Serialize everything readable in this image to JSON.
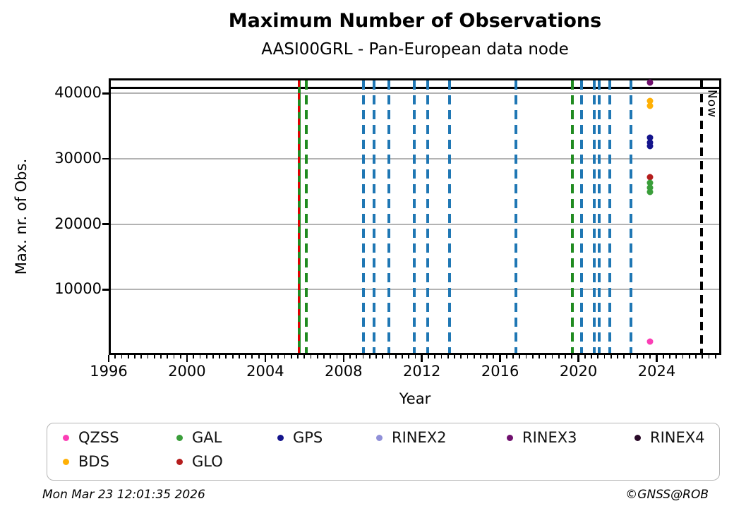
{
  "title": "Maximum Number of Observations",
  "subtitle": "AASI00GRL - Pan-European data node",
  "footer": {
    "timestamp": "Mon Mar 23 12:01:35 2026",
    "credit": "©GNSS@ROB"
  },
  "chart_data": {
    "type": "scatter",
    "title": "Maximum Number of Observations",
    "subtitle": "AASI00GRL - Pan-European data node",
    "xlabel": "Year",
    "ylabel": "Max. nr. of Obs.",
    "xlim": [
      1996,
      2027.3
    ],
    "ylim": [
      0,
      42300
    ],
    "xticks": [
      1996,
      2000,
      2004,
      2008,
      2012,
      2016,
      2020,
      2024
    ],
    "yticks": [
      10000,
      20000,
      30000,
      40000
    ],
    "minor_tick_step_years": 0.33333,
    "grid": "horizontal",
    "grid_color": "#b3b3b3",
    "hline": {
      "value": 40860,
      "color": "#000000"
    },
    "now_line": {
      "year": 2026.28,
      "label": "Now",
      "color": "#000000",
      "style": "dashed"
    },
    "event_lines": [
      {
        "year": 2005.74,
        "color": "#208b20",
        "style": "solid"
      },
      {
        "year": 2005.72,
        "color": "#e00000",
        "style": "dashed-fine"
      },
      {
        "year": 2006.1,
        "color": "#208b20",
        "style": "dashed"
      },
      {
        "year": 2009.0,
        "color": "#1f77b4",
        "style": "dashed"
      },
      {
        "year": 2009.55,
        "color": "#1f77b4",
        "style": "dashed"
      },
      {
        "year": 2010.3,
        "color": "#1f77b4",
        "style": "dashed"
      },
      {
        "year": 2011.6,
        "color": "#1f77b4",
        "style": "dashed"
      },
      {
        "year": 2012.3,
        "color": "#1f77b4",
        "style": "dashed"
      },
      {
        "year": 2013.4,
        "color": "#1f77b4",
        "style": "dashed"
      },
      {
        "year": 2016.8,
        "color": "#1f77b4",
        "style": "dashed"
      },
      {
        "year": 2019.7,
        "color": "#208b20",
        "style": "dashed"
      },
      {
        "year": 2020.15,
        "color": "#1f77b4",
        "style": "dashed"
      },
      {
        "year": 2020.8,
        "color": "#1f77b4",
        "style": "dashed"
      },
      {
        "year": 2021.05,
        "color": "#1f77b4",
        "style": "dashed"
      },
      {
        "year": 2021.6,
        "color": "#1f77b4",
        "style": "dashed"
      },
      {
        "year": 2022.7,
        "color": "#1f77b4",
        "style": "dashed"
      }
    ],
    "series": [
      {
        "name": "RINEX3",
        "color": "#70106e",
        "points": [
          {
            "x": 2023.65,
            "y": 41600
          }
        ]
      },
      {
        "name": "BDS",
        "color": "#ffb005",
        "points": [
          {
            "x": 2023.65,
            "y": 38900
          },
          {
            "x": 2023.65,
            "y": 38100
          }
        ]
      },
      {
        "name": "GPS",
        "color": "#14148c",
        "points": [
          {
            "x": 2023.65,
            "y": 33200
          },
          {
            "x": 2023.65,
            "y": 32500
          },
          {
            "x": 2023.65,
            "y": 31900
          }
        ]
      },
      {
        "name": "GLO",
        "color": "#b51d1d",
        "points": [
          {
            "x": 2023.65,
            "y": 27200
          }
        ]
      },
      {
        "name": "GAL",
        "color": "#3a9e3a",
        "points": [
          {
            "x": 2023.65,
            "y": 26300
          },
          {
            "x": 2023.65,
            "y": 25600
          },
          {
            "x": 2023.65,
            "y": 24900
          }
        ]
      },
      {
        "name": "QZSS",
        "color": "#fb3eb5",
        "points": [
          {
            "x": 2023.65,
            "y": 2100
          }
        ]
      }
    ],
    "legend": {
      "position": "bottom",
      "items": [
        {
          "label": "QZSS",
          "color": "#fb3eb5",
          "col": 0,
          "row": 0
        },
        {
          "label": "GAL",
          "color": "#3a9e3a",
          "col": 1,
          "row": 0
        },
        {
          "label": "GPS",
          "color": "#14148c",
          "col": 2,
          "row": 0
        },
        {
          "label": "RINEX2",
          "color": "#9090d8",
          "col": 3,
          "row": 0
        },
        {
          "label": "RINEX3",
          "color": "#70106e",
          "col": 4,
          "row": 0
        },
        {
          "label": "RINEX4",
          "color": "#2a0a28",
          "col": 5,
          "row": 0
        },
        {
          "label": "BDS",
          "color": "#ffb005",
          "col": 0,
          "row": 1
        },
        {
          "label": "GLO",
          "color": "#b51d1d",
          "col": 1,
          "row": 1
        }
      ]
    }
  }
}
